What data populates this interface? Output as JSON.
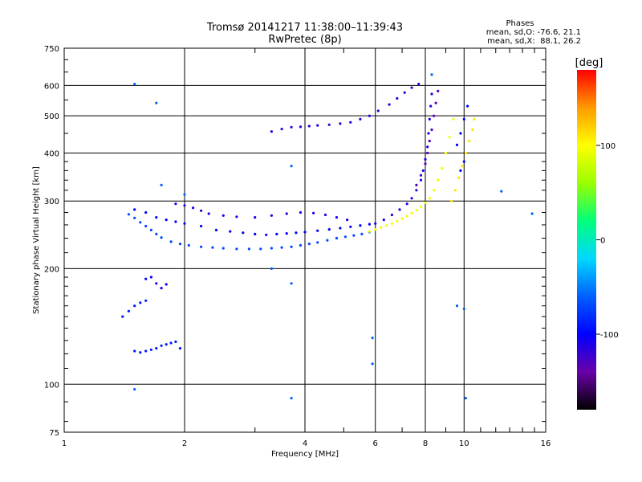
{
  "chart_data": {
    "type": "scatter",
    "title": "Tromsø 20141217 11:38:00–11:39:43",
    "subtitle": "RwPretec (8p)",
    "xlabel": "Frequency [MHz]",
    "ylabel": "Stationary phase Virtual Height [km]",
    "x_scale": "log",
    "y_scale": "log",
    "xlim": [
      1,
      16
    ],
    "ylim": [
      75,
      750
    ],
    "xticks": [
      1,
      2,
      4,
      6,
      8,
      10,
      16
    ],
    "yticks": [
      75,
      100,
      200,
      300,
      400,
      500,
      600,
      750
    ],
    "grid": true,
    "phases_box": {
      "title": "Phases",
      "line_o": "mean, sd,O: -76.6, 21.1",
      "line_x": "mean, sd,X:  88.1, 26.2"
    },
    "colorbar": {
      "label": "[deg]",
      "ticks": [
        100,
        0,
        -100
      ],
      "range": [
        -180,
        180
      ],
      "colors": [
        "#000000",
        "#6a00a8",
        "#0000ff",
        "#0060ff",
        "#00d8ff",
        "#00ff7a",
        "#9aff00",
        "#ffff00",
        "#ff9a00",
        "#ff0000"
      ]
    },
    "series": [
      {
        "points": [
          [
            1.45,
            277
          ],
          [
            1.5,
            271
          ],
          [
            1.55,
            264
          ],
          [
            1.6,
            258
          ],
          [
            1.65,
            252
          ],
          [
            1.7,
            246
          ],
          [
            1.75,
            241
          ],
          [
            1.85,
            235
          ],
          [
            1.95,
            232
          ],
          [
            2.05,
            230
          ],
          [
            2.2,
            228
          ],
          [
            2.35,
            227
          ],
          [
            2.5,
            226
          ],
          [
            2.7,
            225
          ],
          [
            2.9,
            225
          ],
          [
            3.1,
            225
          ],
          [
            3.3,
            226
          ],
          [
            3.5,
            227
          ],
          [
            3.7,
            228
          ],
          [
            3.9,
            230
          ],
          [
            4.1,
            232
          ],
          [
            4.3,
            234
          ],
          [
            4.55,
            237
          ],
          [
            4.8,
            240
          ],
          [
            5.05,
            242
          ],
          [
            5.3,
            244
          ],
          [
            5.55,
            246
          ],
          [
            5.8,
            249
          ]
        ],
        "phase": -70
      },
      {
        "points": [
          [
            1.5,
            285
          ],
          [
            1.6,
            280
          ],
          [
            1.7,
            272
          ],
          [
            1.8,
            268
          ],
          [
            1.9,
            265
          ],
          [
            2.0,
            262
          ],
          [
            2.2,
            258
          ],
          [
            2.4,
            252
          ],
          [
            2.6,
            250
          ],
          [
            2.8,
            248
          ],
          [
            3.0,
            246
          ],
          [
            3.2,
            245
          ],
          [
            3.4,
            246
          ],
          [
            3.6,
            247
          ],
          [
            3.8,
            248
          ],
          [
            4.0,
            249
          ],
          [
            4.3,
            251
          ],
          [
            4.6,
            253
          ],
          [
            4.9,
            255
          ],
          [
            5.2,
            257
          ],
          [
            5.5,
            259
          ],
          [
            5.8,
            261
          ]
        ],
        "phase": -100
      },
      {
        "points": [
          [
            1.9,
            295
          ],
          [
            2.0,
            292
          ],
          [
            2.1,
            288
          ],
          [
            2.2,
            283
          ],
          [
            2.3,
            278
          ],
          [
            2.5,
            275
          ],
          [
            2.7,
            273
          ],
          [
            3.0,
            272
          ],
          [
            3.3,
            275
          ],
          [
            3.6,
            278
          ],
          [
            3.9,
            280
          ],
          [
            4.2,
            279
          ],
          [
            4.5,
            276
          ],
          [
            4.8,
            272
          ],
          [
            5.1,
            268
          ]
        ],
        "phase": -110
      },
      {
        "points": [
          [
            1.4,
            150
          ],
          [
            1.45,
            155
          ],
          [
            1.5,
            160
          ],
          [
            1.55,
            163
          ],
          [
            1.6,
            165
          ],
          [
            1.5,
            122
          ],
          [
            1.55,
            121
          ],
          [
            1.6,
            122
          ],
          [
            1.65,
            123
          ],
          [
            1.7,
            124
          ],
          [
            1.75,
            126
          ],
          [
            1.8,
            127
          ],
          [
            1.85,
            128
          ],
          [
            1.9,
            129
          ],
          [
            1.95,
            124
          ]
        ],
        "phase": -90
      },
      {
        "points": [
          [
            1.7,
            183
          ],
          [
            1.75,
            178
          ],
          [
            1.8,
            182
          ],
          [
            1.65,
            190
          ],
          [
            1.6,
            188
          ]
        ],
        "phase": -105
      },
      {
        "points": [
          [
            3.3,
            455
          ],
          [
            3.5,
            462
          ],
          [
            3.7,
            467
          ],
          [
            3.9,
            468
          ],
          [
            4.1,
            470
          ],
          [
            4.3,
            472
          ],
          [
            4.6,
            474
          ],
          [
            4.9,
            477
          ],
          [
            5.2,
            481
          ],
          [
            5.5,
            490
          ],
          [
            5.8,
            500
          ],
          [
            6.1,
            515
          ],
          [
            6.5,
            535
          ],
          [
            6.8,
            555
          ],
          [
            7.1,
            575
          ],
          [
            7.4,
            592
          ],
          [
            7.7,
            605
          ]
        ],
        "phase": -115
      },
      {
        "points": [
          [
            5.8,
            250
          ],
          [
            6.0,
            253
          ],
          [
            6.2,
            256
          ],
          [
            6.4,
            259
          ],
          [
            6.6,
            262
          ],
          [
            6.8,
            266
          ],
          [
            7.0,
            270
          ],
          [
            7.2,
            274
          ],
          [
            7.4,
            279
          ],
          [
            7.6,
            284
          ],
          [
            7.8,
            290
          ],
          [
            8.0,
            297
          ],
          [
            8.2,
            305
          ],
          [
            8.4,
            320
          ],
          [
            8.6,
            340
          ],
          [
            8.8,
            365
          ],
          [
            9.0,
            400
          ],
          [
            9.2,
            440
          ],
          [
            9.4,
            490
          ]
        ],
        "phase": 95
      },
      {
        "points": [
          [
            6.0,
            262
          ],
          [
            6.3,
            268
          ],
          [
            6.6,
            276
          ],
          [
            6.9,
            285
          ],
          [
            7.2,
            295
          ],
          [
            7.4,
            305
          ],
          [
            7.6,
            320
          ],
          [
            7.8,
            340
          ],
          [
            7.9,
            360
          ],
          [
            8.0,
            385
          ],
          [
            8.1,
            415
          ],
          [
            8.15,
            450
          ],
          [
            8.2,
            490
          ],
          [
            8.25,
            530
          ],
          [
            8.3,
            570
          ]
        ],
        "phase": -110
      },
      {
        "points": [
          [
            7.6,
            330
          ],
          [
            7.8,
            350
          ],
          [
            8.0,
            375
          ],
          [
            8.1,
            400
          ],
          [
            8.2,
            430
          ],
          [
            8.3,
            460
          ],
          [
            8.4,
            500
          ],
          [
            8.5,
            540
          ],
          [
            8.6,
            580
          ]
        ],
        "phase": -130
      },
      {
        "points": [
          [
            9.3,
            300
          ],
          [
            9.5,
            320
          ],
          [
            9.7,
            345
          ],
          [
            9.9,
            370
          ],
          [
            10.1,
            400
          ],
          [
            10.3,
            430
          ],
          [
            10.5,
            460
          ],
          [
            10.6,
            490
          ]
        ],
        "phase": 110
      },
      {
        "points": [
          [
            9.6,
            420
          ],
          [
            9.8,
            450
          ],
          [
            10.0,
            490
          ],
          [
            10.2,
            530
          ],
          [
            10.0,
            380
          ],
          [
            9.8,
            360
          ]
        ],
        "phase": -100
      },
      {
        "points": [
          [
            1.5,
            605
          ],
          [
            1.7,
            540
          ],
          [
            1.75,
            330
          ],
          [
            2.0,
            312
          ],
          [
            3.3,
            200
          ],
          [
            3.7,
            370
          ],
          [
            3.7,
            183
          ],
          [
            3.7,
            92
          ],
          [
            1.5,
            97
          ],
          [
            5.9,
            132
          ],
          [
            5.9,
            113
          ],
          [
            8.3,
            640
          ],
          [
            9.6,
            160
          ],
          [
            10.0,
            157
          ],
          [
            10.1,
            92
          ],
          [
            12.4,
            318
          ],
          [
            14.8,
            278
          ]
        ],
        "phase": -60
      }
    ]
  }
}
